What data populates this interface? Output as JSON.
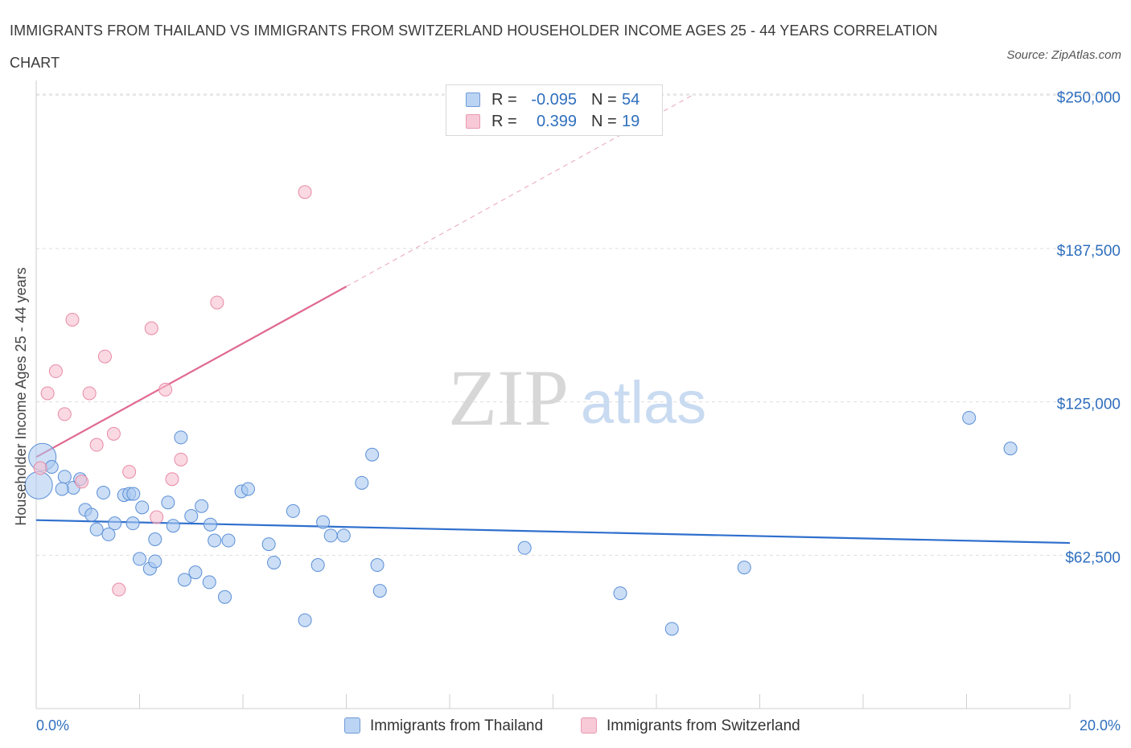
{
  "header": {
    "title": "IMMIGRANTS FROM THAILAND VS IMMIGRANTS FROM SWITZERLAND HOUSEHOLDER INCOME AGES 25 - 44 YEARS CORRELATION CHART",
    "source": "Source: ZipAtlas.com"
  },
  "watermark": {
    "zip": "ZIP",
    "atlas": "atlas"
  },
  "legend_top": {
    "rows": [
      {
        "r_label": "R =",
        "r_value": "-0.095",
        "n_label": "N =",
        "n_value": "54"
      },
      {
        "r_label": "R =",
        "r_value": "0.399",
        "n_label": "N =",
        "n_value": "19"
      }
    ]
  },
  "legend_bottom": {
    "items": [
      {
        "label": "Immigrants from Thailand"
      },
      {
        "label": "Immigrants from Switzerland"
      }
    ]
  },
  "colors": {
    "thailand_fill": "#a9c8f0",
    "thailand_stroke": "#5b8fd6",
    "thailand_line": "#2f6fcd",
    "switzerland_fill": "#f7bfd0",
    "switzerland_stroke": "#e88aa6",
    "switzerland_line": "#e0698f",
    "axis_text": "#2f6fbe",
    "grid": "#dedede"
  },
  "chart_data": {
    "type": "scatter",
    "title": "IMMIGRANTS FROM THAILAND VS IMMIGRANTS FROM SWITZERLAND HOUSEHOLDER INCOME AGES 25 - 44 YEARS CORRELATION CHART",
    "xlabel": "",
    "ylabel": "Householder Income Ages 25 - 44 years",
    "x_unit": "percent",
    "xlim": [
      0,
      20
    ],
    "ylim": [
      0,
      256000
    ],
    "x_tick_labels": [
      "0.0%",
      "20.0%"
    ],
    "y_ticks": [
      62500,
      125000,
      187500,
      250000
    ],
    "y_tick_labels": [
      "$62,500",
      "$125,000",
      "$187,500",
      "$250,000"
    ],
    "grid": true,
    "legend_position": "bottom",
    "series": [
      {
        "name": "Immigrants from Thailand",
        "R": -0.095,
        "N": 54,
        "trend": {
          "x": [
            0,
            20
          ],
          "y": [
            76800,
            67500
          ]
        },
        "points": [
          {
            "x": 0.05,
            "y": 91000,
            "big": true
          },
          {
            "x": 0.12,
            "y": 102500,
            "big": true
          },
          {
            "x": 0.3,
            "y": 98500
          },
          {
            "x": 0.55,
            "y": 94500
          },
          {
            "x": 0.72,
            "y": 90000
          },
          {
            "x": 0.5,
            "y": 89500
          },
          {
            "x": 0.85,
            "y": 93500
          },
          {
            "x": 1.3,
            "y": 88000
          },
          {
            "x": 1.7,
            "y": 87000
          },
          {
            "x": 1.8,
            "y": 87500
          },
          {
            "x": 0.95,
            "y": 81000
          },
          {
            "x": 1.07,
            "y": 79000
          },
          {
            "x": 1.17,
            "y": 73000
          },
          {
            "x": 1.4,
            "y": 71000
          },
          {
            "x": 1.52,
            "y": 75500
          },
          {
            "x": 1.87,
            "y": 75500
          },
          {
            "x": 2.05,
            "y": 82000
          },
          {
            "x": 2.55,
            "y": 84000
          },
          {
            "x": 2.65,
            "y": 74500
          },
          {
            "x": 2.0,
            "y": 61000
          },
          {
            "x": 2.2,
            "y": 57000
          },
          {
            "x": 2.3,
            "y": 60000
          },
          {
            "x": 2.3,
            "y": 69000
          },
          {
            "x": 2.8,
            "y": 110500
          },
          {
            "x": 3.0,
            "y": 78500
          },
          {
            "x": 3.2,
            "y": 82500
          },
          {
            "x": 3.37,
            "y": 75000
          },
          {
            "x": 3.45,
            "y": 68500
          },
          {
            "x": 3.72,
            "y": 68500
          },
          {
            "x": 2.87,
            "y": 52500
          },
          {
            "x": 3.08,
            "y": 55500
          },
          {
            "x": 3.35,
            "y": 51500
          },
          {
            "x": 3.65,
            "y": 45500
          },
          {
            "x": 3.97,
            "y": 88500
          },
          {
            "x": 4.1,
            "y": 89500
          },
          {
            "x": 4.5,
            "y": 67000
          },
          {
            "x": 4.6,
            "y": 59500
          },
          {
            "x": 4.97,
            "y": 80500
          },
          {
            "x": 5.2,
            "y": 36000
          },
          {
            "x": 5.45,
            "y": 58500
          },
          {
            "x": 5.55,
            "y": 76000
          },
          {
            "x": 5.7,
            "y": 70500
          },
          {
            "x": 5.95,
            "y": 70500
          },
          {
            "x": 6.3,
            "y": 92000
          },
          {
            "x": 6.5,
            "y": 103500
          },
          {
            "x": 6.6,
            "y": 58500
          },
          {
            "x": 6.65,
            "y": 48000
          },
          {
            "x": 9.45,
            "y": 65500
          },
          {
            "x": 11.3,
            "y": 47000
          },
          {
            "x": 12.3,
            "y": 32500
          },
          {
            "x": 13.7,
            "y": 57500
          },
          {
            "x": 18.05,
            "y": 118500
          },
          {
            "x": 18.85,
            "y": 106000
          },
          {
            "x": 1.88,
            "y": 87500
          }
        ]
      },
      {
        "name": "Immigrants from Switzerland",
        "R": 0.399,
        "N": 19,
        "trend": {
          "x": [
            0,
            6
          ],
          "y": [
            102500,
            172000
          ]
        },
        "trend_dashed": {
          "x": [
            6,
            12.7
          ],
          "y": [
            172000,
            250000
          ]
        },
        "points": [
          {
            "x": 0.08,
            "y": 98000
          },
          {
            "x": 0.22,
            "y": 128500
          },
          {
            "x": 0.38,
            "y": 137500
          },
          {
            "x": 0.55,
            "y": 120000
          },
          {
            "x": 0.7,
            "y": 158500
          },
          {
            "x": 0.88,
            "y": 92500
          },
          {
            "x": 1.03,
            "y": 128500
          },
          {
            "x": 1.17,
            "y": 107500
          },
          {
            "x": 1.33,
            "y": 143500
          },
          {
            "x": 1.5,
            "y": 112000
          },
          {
            "x": 1.6,
            "y": 48500
          },
          {
            "x": 1.8,
            "y": 96500
          },
          {
            "x": 2.23,
            "y": 155000
          },
          {
            "x": 2.33,
            "y": 78000
          },
          {
            "x": 2.5,
            "y": 130000
          },
          {
            "x": 2.63,
            "y": 93500
          },
          {
            "x": 2.8,
            "y": 101500
          },
          {
            "x": 3.5,
            "y": 165500
          },
          {
            "x": 5.2,
            "y": 210500
          }
        ]
      }
    ]
  }
}
